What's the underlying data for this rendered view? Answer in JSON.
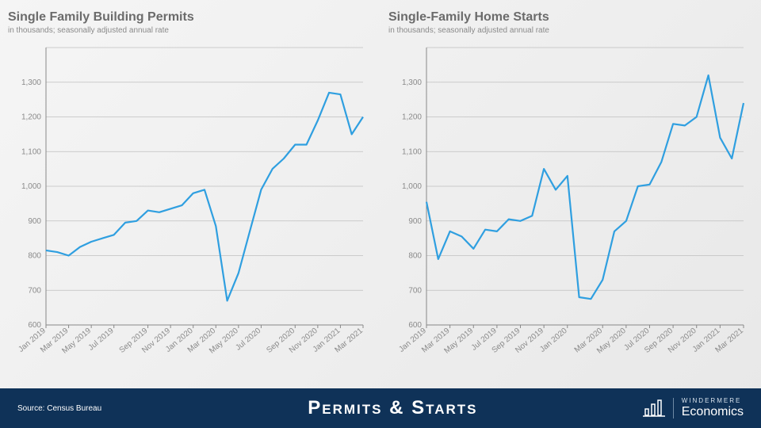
{
  "background_gradient": [
    "#f5f5f5",
    "#e8e8e8"
  ],
  "footer": {
    "bg_color": "#0f3258",
    "source_label": "Source: Census Bureau",
    "title": "Permits & Starts",
    "brand_top": "WINDERMERE",
    "brand_bottom": "Economics"
  },
  "shared_axis": {
    "ylim": [
      600,
      1400
    ],
    "ytick_step": 100,
    "categories": [
      "Jan 2019",
      "Mar 2019",
      "May 2019",
      "Jul 2019",
      "Sep 2019",
      "Nov 2019",
      "Jan 2020",
      "Mar 2020",
      "May 2020",
      "Jul 2020",
      "Sep 2020",
      "Nov 2020",
      "Jan 2021",
      "Mar 2021"
    ],
    "grid_color": "#bfbfbf",
    "axis_color": "#888888",
    "tick_label_color": "#8a8a8a",
    "tick_fontsize": 10
  },
  "series_style": {
    "line_color": "#2f9fe0",
    "line_width": 2.2
  },
  "charts": [
    {
      "title": "Single Family  Building Permits",
      "subtitle": "in thousands; seasonally adjusted annual rate",
      "title_color": "#6b6b6b",
      "title_fontsize": 16,
      "subtitle_fontsize": 10,
      "values": [
        815,
        810,
        800,
        825,
        840,
        850,
        860,
        895,
        900,
        930,
        925,
        935,
        945,
        980,
        990,
        885,
        670,
        750,
        870,
        990,
        1050,
        1080,
        1120,
        1120,
        1190,
        1270,
        1265,
        1150,
        1200
      ]
    },
    {
      "title": "Single-Family Home Starts",
      "subtitle": "in thousands; seasonally adjusted annual rate",
      "title_color": "#6b6b6b",
      "title_fontsize": 16,
      "subtitle_fontsize": 10,
      "values": [
        955,
        790,
        870,
        855,
        820,
        875,
        870,
        905,
        900,
        915,
        1050,
        990,
        1030,
        680,
        675,
        730,
        870,
        900,
        1000,
        1005,
        1070,
        1180,
        1175,
        1200,
        1320,
        1140,
        1080,
        1240
      ]
    }
  ]
}
